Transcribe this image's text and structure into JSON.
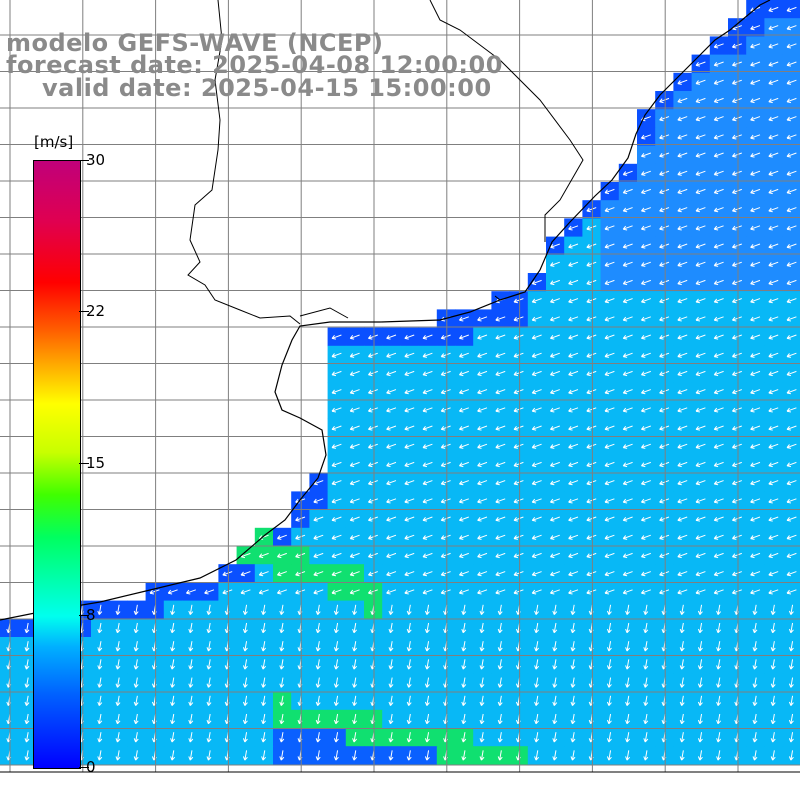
{
  "header": {
    "title": "modelo GEFS-WAVE (NCEP)",
    "forecast": "forecast date: 2025-04-08 12:00:00",
    "valid": "valid date: 2025-04-15 15:00:00"
  },
  "colorbar": {
    "unit": "[m/s]",
    "ticks": [
      {
        "label": "30",
        "value": 30
      },
      {
        "label": "22",
        "value": 22
      },
      {
        "label": "15",
        "value": 15
      },
      {
        "label": "8",
        "value": 8
      },
      {
        "label": "0",
        "value": 0
      }
    ],
    "range": [
      0,
      30
    ]
  },
  "map": {
    "variable": "wind speed",
    "arrow_direction": "from northeast toward southwest",
    "colors": {
      "land": "#ffffff",
      "gridline": "#7f7f7f",
      "coast": "#000000",
      "low_speed": "#0044ff",
      "mid_speed": "#00b4ff",
      "high_speed": "#00e060",
      "arrow": "#ffffff"
    }
  }
}
